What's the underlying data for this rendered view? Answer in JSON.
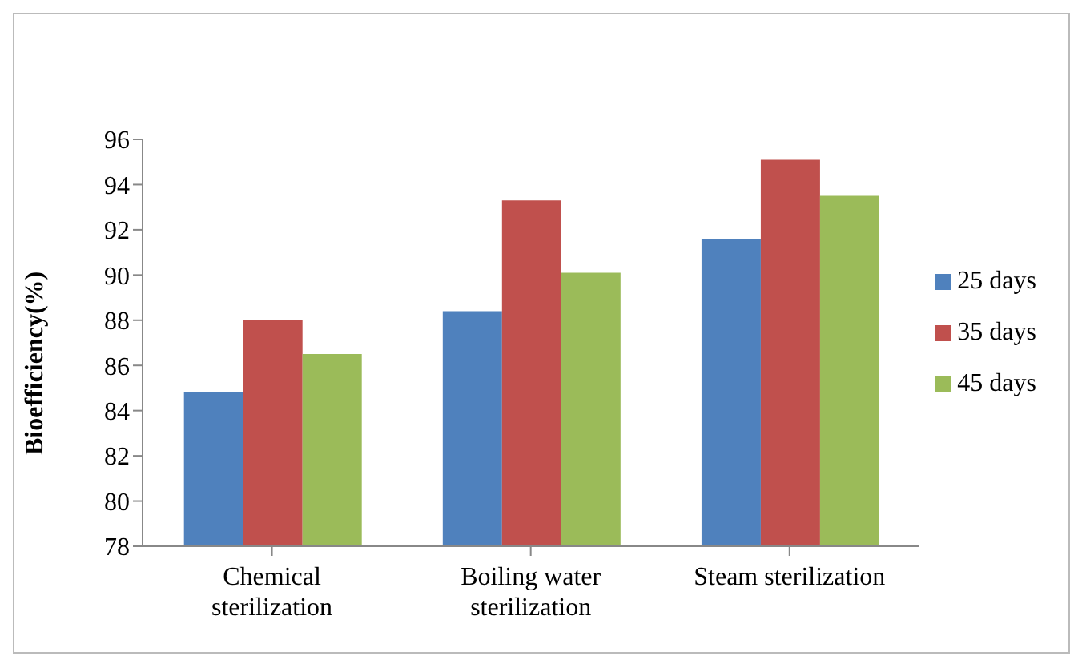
{
  "chart_data": {
    "type": "bar",
    "ylabel": "Bioefficiency(%)",
    "categories": [
      "Chemical sterilization",
      "Boiling water sterilization",
      "Steam sterilization"
    ],
    "series": [
      {
        "name": "25 days",
        "color": "#4f81bd",
        "values": [
          84.8,
          88.4,
          91.6
        ]
      },
      {
        "name": "35 days",
        "color": "#c0504d",
        "values": [
          88.0,
          93.3,
          95.1
        ]
      },
      {
        "name": "45 days",
        "color": "#9bbb59",
        "values": [
          86.5,
          90.1,
          93.5
        ]
      }
    ],
    "ylim": [
      78,
      96
    ],
    "yticks": [
      78,
      80,
      82,
      84,
      86,
      88,
      90,
      92,
      94,
      96
    ],
    "grid": false,
    "legend": "right"
  }
}
